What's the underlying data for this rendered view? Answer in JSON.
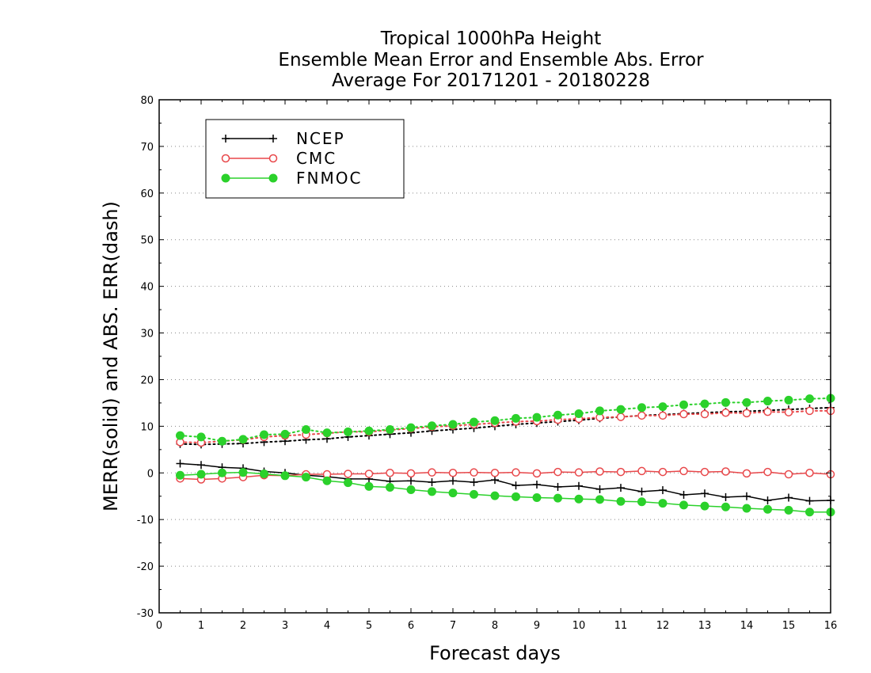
{
  "chart_data": {
    "type": "line",
    "title": [
      "Tropical 1000hPa Height",
      "Ensemble Mean Error and Ensemble Abs. Error",
      "Average For 20171201 - 20180228"
    ],
    "xlabel": "Forecast days",
    "ylabel": "MERR(solid) and ABS. ERR(dash)",
    "xlim": [
      0,
      16
    ],
    "ylim": [
      -30,
      80
    ],
    "xticks": [
      "0",
      "1",
      "2",
      "3",
      "4",
      "5",
      "6",
      "7",
      "8",
      "9",
      "10",
      "11",
      "12",
      "13",
      "14",
      "15",
      "16"
    ],
    "yticks": [
      "-30",
      "-20",
      "-10",
      "0",
      "10",
      "20",
      "30",
      "40",
      "50",
      "60",
      "70",
      "80"
    ],
    "grid": "horizontal dotted",
    "legend_position": "top-left",
    "x": [
      0.5,
      1,
      1.5,
      2,
      2.5,
      3,
      3.5,
      4,
      4.5,
      5,
      5.5,
      6,
      6.5,
      7,
      7.5,
      8,
      8.5,
      9,
      9.5,
      10,
      10.5,
      11,
      11.5,
      12,
      12.5,
      13,
      13.5,
      14,
      14.5,
      15,
      15.5,
      16
    ],
    "series": [
      {
        "name": "NCEP",
        "color": "#000000",
        "marker": "plus",
        "merr": [
          2.0,
          1.7,
          1.2,
          1.0,
          0.3,
          0.0,
          -0.5,
          -0.8,
          -1.3,
          -1.3,
          -1.8,
          -1.7,
          -2.0,
          -1.7,
          -2.0,
          -1.5,
          -2.7,
          -2.5,
          -3.0,
          -2.8,
          -3.5,
          -3.2,
          -4.0,
          -3.7,
          -4.7,
          -4.4,
          -5.2,
          -5.0,
          -5.9,
          -5.3,
          -6.0,
          -5.9
        ],
        "abs_err": [
          6.2,
          6.1,
          6.2,
          6.3,
          6.6,
          6.8,
          7.1,
          7.3,
          7.7,
          8.0,
          8.3,
          8.6,
          9.0,
          9.3,
          9.6,
          10.0,
          10.4,
          10.7,
          11.0,
          11.3,
          11.7,
          12.0,
          12.3,
          12.5,
          12.7,
          12.9,
          13.1,
          13.2,
          13.4,
          13.6,
          13.8,
          14.0
        ]
      },
      {
        "name": "CMC",
        "color": "#e8474a",
        "marker": "circle-open",
        "merr": [
          -1.2,
          -1.4,
          -1.2,
          -0.9,
          -0.5,
          -0.6,
          -0.3,
          -0.3,
          -0.2,
          -0.2,
          0.0,
          -0.1,
          0.1,
          0.0,
          0.1,
          0.0,
          0.1,
          -0.1,
          0.2,
          0.1,
          0.3,
          0.2,
          0.4,
          0.2,
          0.4,
          0.2,
          0.3,
          -0.1,
          0.2,
          -0.3,
          0.0,
          -0.3
        ],
        "abs_err": [
          6.6,
          6.5,
          6.8,
          7.1,
          7.7,
          8.0,
          8.2,
          8.5,
          8.8,
          8.8,
          9.2,
          9.5,
          9.9,
          10.1,
          10.4,
          10.7,
          11.0,
          11.1,
          11.4,
          11.6,
          11.9,
          12.0,
          12.3,
          12.3,
          12.6,
          12.6,
          12.9,
          12.8,
          13.1,
          13.0,
          13.3,
          13.3
        ]
      },
      {
        "name": "FNMOC",
        "color": "#2bd12b",
        "marker": "circle-filled",
        "merr": [
          -0.5,
          -0.3,
          0.0,
          0.1,
          -0.2,
          -0.6,
          -0.9,
          -1.7,
          -2.1,
          -2.9,
          -3.1,
          -3.6,
          -4.0,
          -4.3,
          -4.6,
          -4.9,
          -5.1,
          -5.3,
          -5.4,
          -5.6,
          -5.7,
          -6.1,
          -6.2,
          -6.5,
          -6.9,
          -7.1,
          -7.3,
          -7.6,
          -7.8,
          -8.0,
          -8.4,
          -8.4
        ],
        "abs_err": [
          8.0,
          7.7,
          6.8,
          7.2,
          8.2,
          8.3,
          9.3,
          8.6,
          8.8,
          9.0,
          9.3,
          9.7,
          10.1,
          10.4,
          10.9,
          11.2,
          11.7,
          11.9,
          12.4,
          12.7,
          13.3,
          13.6,
          14.0,
          14.2,
          14.6,
          14.8,
          15.1,
          15.1,
          15.4,
          15.6,
          15.9,
          16.0
        ]
      }
    ]
  }
}
